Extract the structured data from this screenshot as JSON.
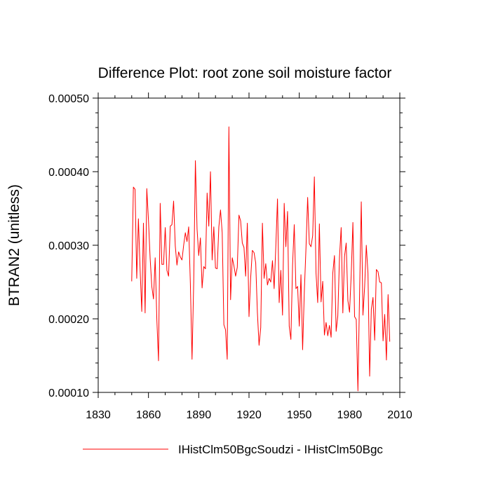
{
  "chart_data": {
    "type": "line",
    "title": "Difference Plot: root zone soil moisture factor",
    "xlabel": "",
    "ylabel": "BTRAN2  (unitless)",
    "xlim": [
      1830,
      2010
    ],
    "ylim": [
      0.0001,
      0.0005
    ],
    "x_ticks": [
      1830,
      1860,
      1890,
      1920,
      1950,
      1980,
      2010
    ],
    "x_tick_labels": [
      "1830",
      "1860",
      "1890",
      "1920",
      "1950",
      "1980",
      "2010"
    ],
    "y_ticks": [
      0.0001,
      0.0002,
      0.0003,
      0.0004,
      0.0005
    ],
    "y_tick_labels": [
      "0.00010",
      "0.00020",
      "0.00030",
      "0.00040",
      "0.00050"
    ],
    "grid": false,
    "legend_position": "bottom",
    "series": [
      {
        "name": "IHistClm50BgcSoudzi - IHistClm50Bgc",
        "color": "#ff0000",
        "x_start": 1850,
        "x_step": 1,
        "values": [
          0.000251,
          0.000379,
          0.000376,
          0.000255,
          0.000336,
          0.000268,
          0.00021,
          0.00033,
          0.000208,
          0.000377,
          0.000334,
          0.000282,
          0.000244,
          0.000227,
          0.000283,
          0.000199,
          0.000143,
          0.000357,
          0.000274,
          0.000274,
          0.000324,
          0.000266,
          0.000258,
          0.000326,
          0.000328,
          0.00036,
          0.000299,
          0.000273,
          0.000291,
          0.000284,
          0.00028,
          0.0003,
          0.000317,
          0.000305,
          0.000325,
          0.000248,
          0.000145,
          0.00025,
          0.000415,
          0.000322,
          0.000286,
          0.00031,
          0.000242,
          0.000271,
          0.000268,
          0.000371,
          0.000326,
          0.0004,
          0.00028,
          0.000325,
          0.000269,
          0.000268,
          0.000325,
          0.000348,
          0.000317,
          0.000192,
          0.000185,
          0.000145,
          0.000461,
          0.000226,
          0.000283,
          0.000272,
          0.000258,
          0.00027,
          0.000341,
          0.000333,
          0.000303,
          0.000297,
          0.000258,
          0.00033,
          0.000203,
          0.000256,
          0.000293,
          0.00029,
          0.000276,
          0.000209,
          0.000164,
          0.000188,
          0.00033,
          0.000255,
          0.000275,
          0.000246,
          0.000255,
          0.00025,
          0.000279,
          0.000241,
          0.000298,
          0.000363,
          0.000222,
          0.000266,
          0.000205,
          0.000357,
          0.000298,
          0.000346,
          0.00019,
          0.000172,
          0.000273,
          0.000328,
          0.000241,
          0.000244,
          0.00019,
          0.00026,
          0.000158,
          0.000236,
          0.000296,
          0.000365,
          0.000302,
          0.000298,
          0.000313,
          0.000393,
          0.000262,
          0.000222,
          0.000329,
          0.000223,
          0.000251,
          0.000178,
          0.000195,
          0.000177,
          0.000191,
          0.000175,
          0.000262,
          0.000286,
          0.000183,
          0.000204,
          0.000284,
          0.000324,
          0.000208,
          0.000285,
          0.000303,
          0.000225,
          0.000209,
          0.00026,
          0.000331,
          0.000203,
          0.000199,
          0.000102,
          0.000236,
          0.000359,
          0.000205,
          0.000243,
          0.0003,
          0.000262,
          0.000122,
          0.000213,
          0.000229,
          0.000171,
          0.000267,
          0.000264,
          0.00025,
          0.000249,
          0.00017,
          0.000206,
          0.000144,
          0.000233,
          0.000169
        ]
      }
    ]
  }
}
